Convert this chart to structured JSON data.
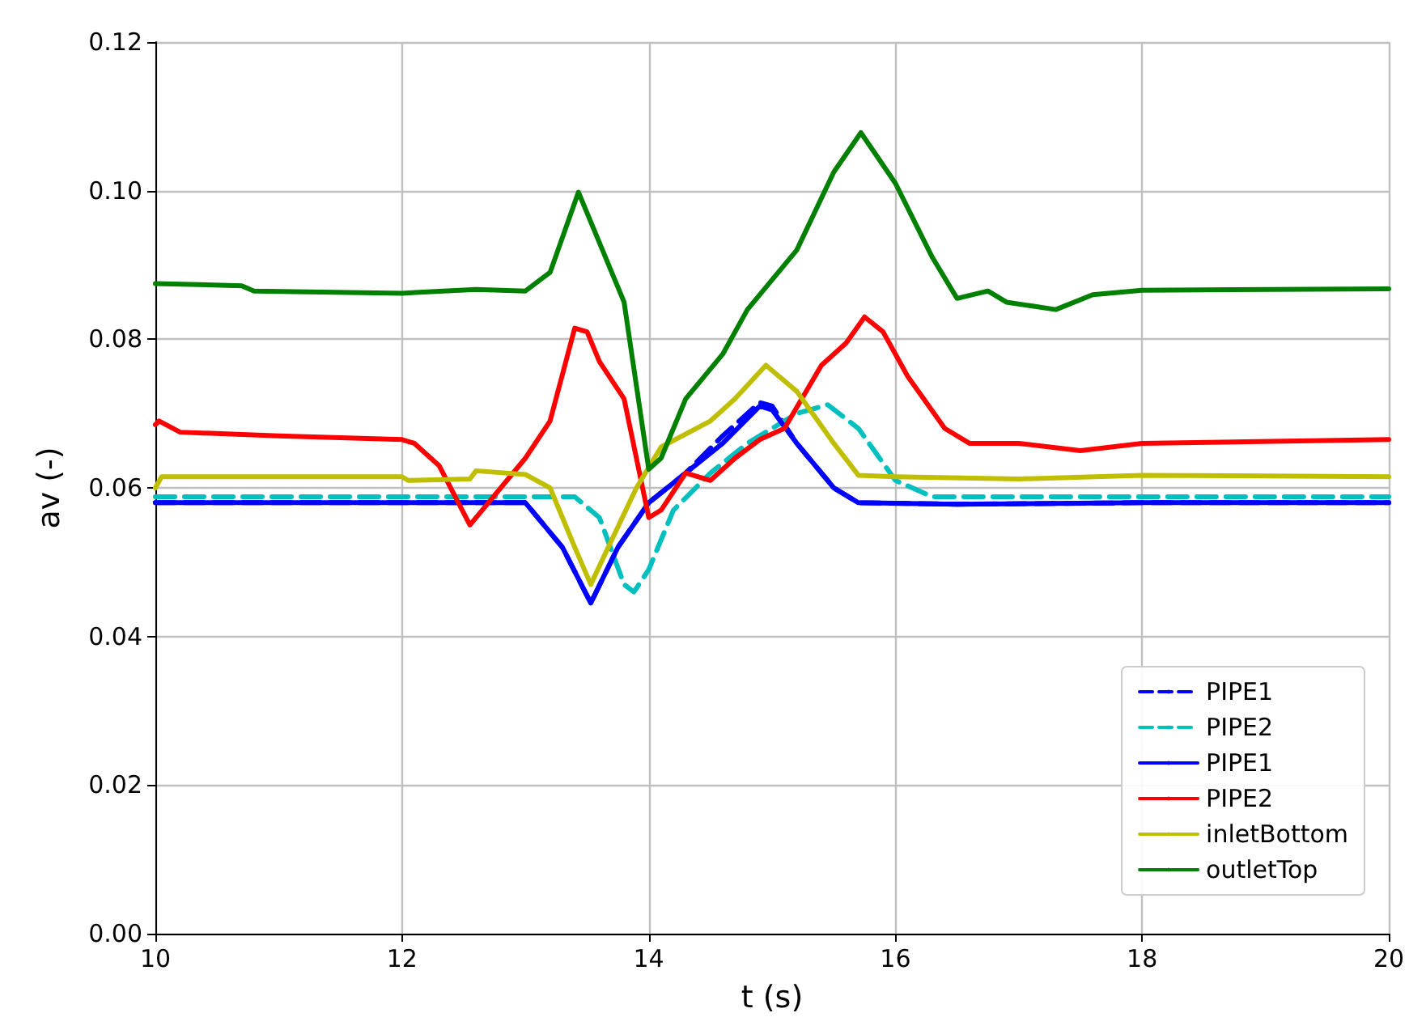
{
  "chart_data": {
    "type": "line",
    "xlabel": "t (s)",
    "ylabel": "av (-)",
    "xlim": [
      10,
      20
    ],
    "ylim": [
      0,
      0.12
    ],
    "xticks": [
      10,
      12,
      14,
      16,
      18,
      20
    ],
    "yticks": [
      {
        "value": 0,
        "label": "0.00"
      },
      {
        "value": 0.02,
        "label": "0.02"
      },
      {
        "value": 0.04,
        "label": "0.04"
      },
      {
        "value": 0.06,
        "label": "0.06"
      },
      {
        "value": 0.08,
        "label": "0.08"
      },
      {
        "value": 0.1,
        "label": "0.10"
      },
      {
        "value": 0.12,
        "label": "0.12"
      }
    ],
    "grid": true,
    "legend": "bottom right",
    "marker": "none",
    "series": [
      {
        "name": "PIPE1",
        "color": "#0000ff",
        "line_style": "dashed",
        "x": [
          10,
          13.0,
          13.3,
          13.53,
          13.75,
          14.0,
          14.3,
          14.6,
          14.9,
          15.0,
          15.2,
          15.5,
          15.7,
          16.5,
          18,
          20
        ],
        "values": [
          0.058,
          0.058,
          0.052,
          0.0445,
          0.052,
          0.058,
          0.062,
          0.067,
          0.0715,
          0.071,
          0.066,
          0.06,
          0.058,
          0.0578,
          0.058,
          0.058
        ]
      },
      {
        "name": "PIPE2",
        "color": "#00bfbf",
        "line_style": "dashed",
        "x": [
          10,
          13.4,
          13.6,
          13.8,
          13.88,
          14.0,
          14.2,
          14.5,
          14.8,
          15.2,
          15.45,
          15.7,
          16.0,
          16.3,
          20
        ],
        "values": [
          0.0588,
          0.0588,
          0.056,
          0.047,
          0.046,
          0.049,
          0.057,
          0.062,
          0.066,
          0.07,
          0.0712,
          0.068,
          0.061,
          0.0588,
          0.0588
        ]
      },
      {
        "name": "PIPE1",
        "color": "#0000ff",
        "line_style": "solid",
        "x": [
          10,
          13.0,
          13.3,
          13.53,
          13.75,
          14.0,
          14.3,
          14.6,
          14.9,
          15.0,
          15.2,
          15.5,
          15.7,
          16.5,
          18,
          20
        ],
        "values": [
          0.058,
          0.058,
          0.052,
          0.0445,
          0.052,
          0.058,
          0.062,
          0.066,
          0.071,
          0.0705,
          0.066,
          0.06,
          0.058,
          0.0578,
          0.058,
          0.058
        ]
      },
      {
        "name": "PIPE2",
        "color": "#ff0000",
        "line_style": "solid",
        "x": [
          10,
          10.03,
          10.2,
          11,
          12,
          12.1,
          12.3,
          12.55,
          12.7,
          13.0,
          13.2,
          13.4,
          13.5,
          13.6,
          13.8,
          14.0,
          14.1,
          14.3,
          14.5,
          14.7,
          14.9,
          15.1,
          15.4,
          15.6,
          15.75,
          15.9,
          16.1,
          16.4,
          16.6,
          17.0,
          17.5,
          18,
          20
        ],
        "values": [
          0.0685,
          0.069,
          0.0675,
          0.067,
          0.0665,
          0.066,
          0.063,
          0.055,
          0.058,
          0.064,
          0.069,
          0.0815,
          0.081,
          0.077,
          0.072,
          0.056,
          0.057,
          0.062,
          0.061,
          0.064,
          0.0665,
          0.068,
          0.0765,
          0.0795,
          0.083,
          0.081,
          0.075,
          0.068,
          0.066,
          0.066,
          0.065,
          0.066,
          0.0665
        ]
      },
      {
        "name": "inletBottom",
        "color": "#bfbf00",
        "line_style": "solid",
        "x": [
          10,
          10.05,
          12,
          12.05,
          12.55,
          12.6,
          13.0,
          13.2,
          13.4,
          13.53,
          13.7,
          13.9,
          14.1,
          14.5,
          14.7,
          14.95,
          15.2,
          15.5,
          15.7,
          16,
          17,
          18,
          20
        ],
        "values": [
          0.06,
          0.0615,
          0.0615,
          0.061,
          0.0612,
          0.0623,
          0.0618,
          0.06,
          0.052,
          0.047,
          0.053,
          0.06,
          0.0655,
          0.069,
          0.072,
          0.0765,
          0.073,
          0.066,
          0.0617,
          0.0615,
          0.0612,
          0.0617,
          0.0615
        ]
      },
      {
        "name": "outletTop",
        "color": "#008000",
        "line_style": "solid",
        "x": [
          10,
          10.7,
          10.8,
          12,
          12.6,
          13.0,
          13.2,
          13.43,
          13.6,
          13.8,
          14.0,
          14.1,
          14.3,
          14.6,
          14.8,
          15.0,
          15.2,
          15.5,
          15.72,
          16.0,
          16.3,
          16.5,
          16.75,
          16.9,
          17.3,
          17.6,
          18,
          20
        ],
        "values": [
          0.0875,
          0.0872,
          0.0865,
          0.0862,
          0.0867,
          0.0865,
          0.089,
          0.0998,
          0.093,
          0.085,
          0.0625,
          0.064,
          0.072,
          0.078,
          0.084,
          0.088,
          0.092,
          0.1025,
          0.1078,
          0.101,
          0.091,
          0.0855,
          0.0865,
          0.085,
          0.084,
          0.086,
          0.0866,
          0.0868
        ]
      }
    ]
  }
}
